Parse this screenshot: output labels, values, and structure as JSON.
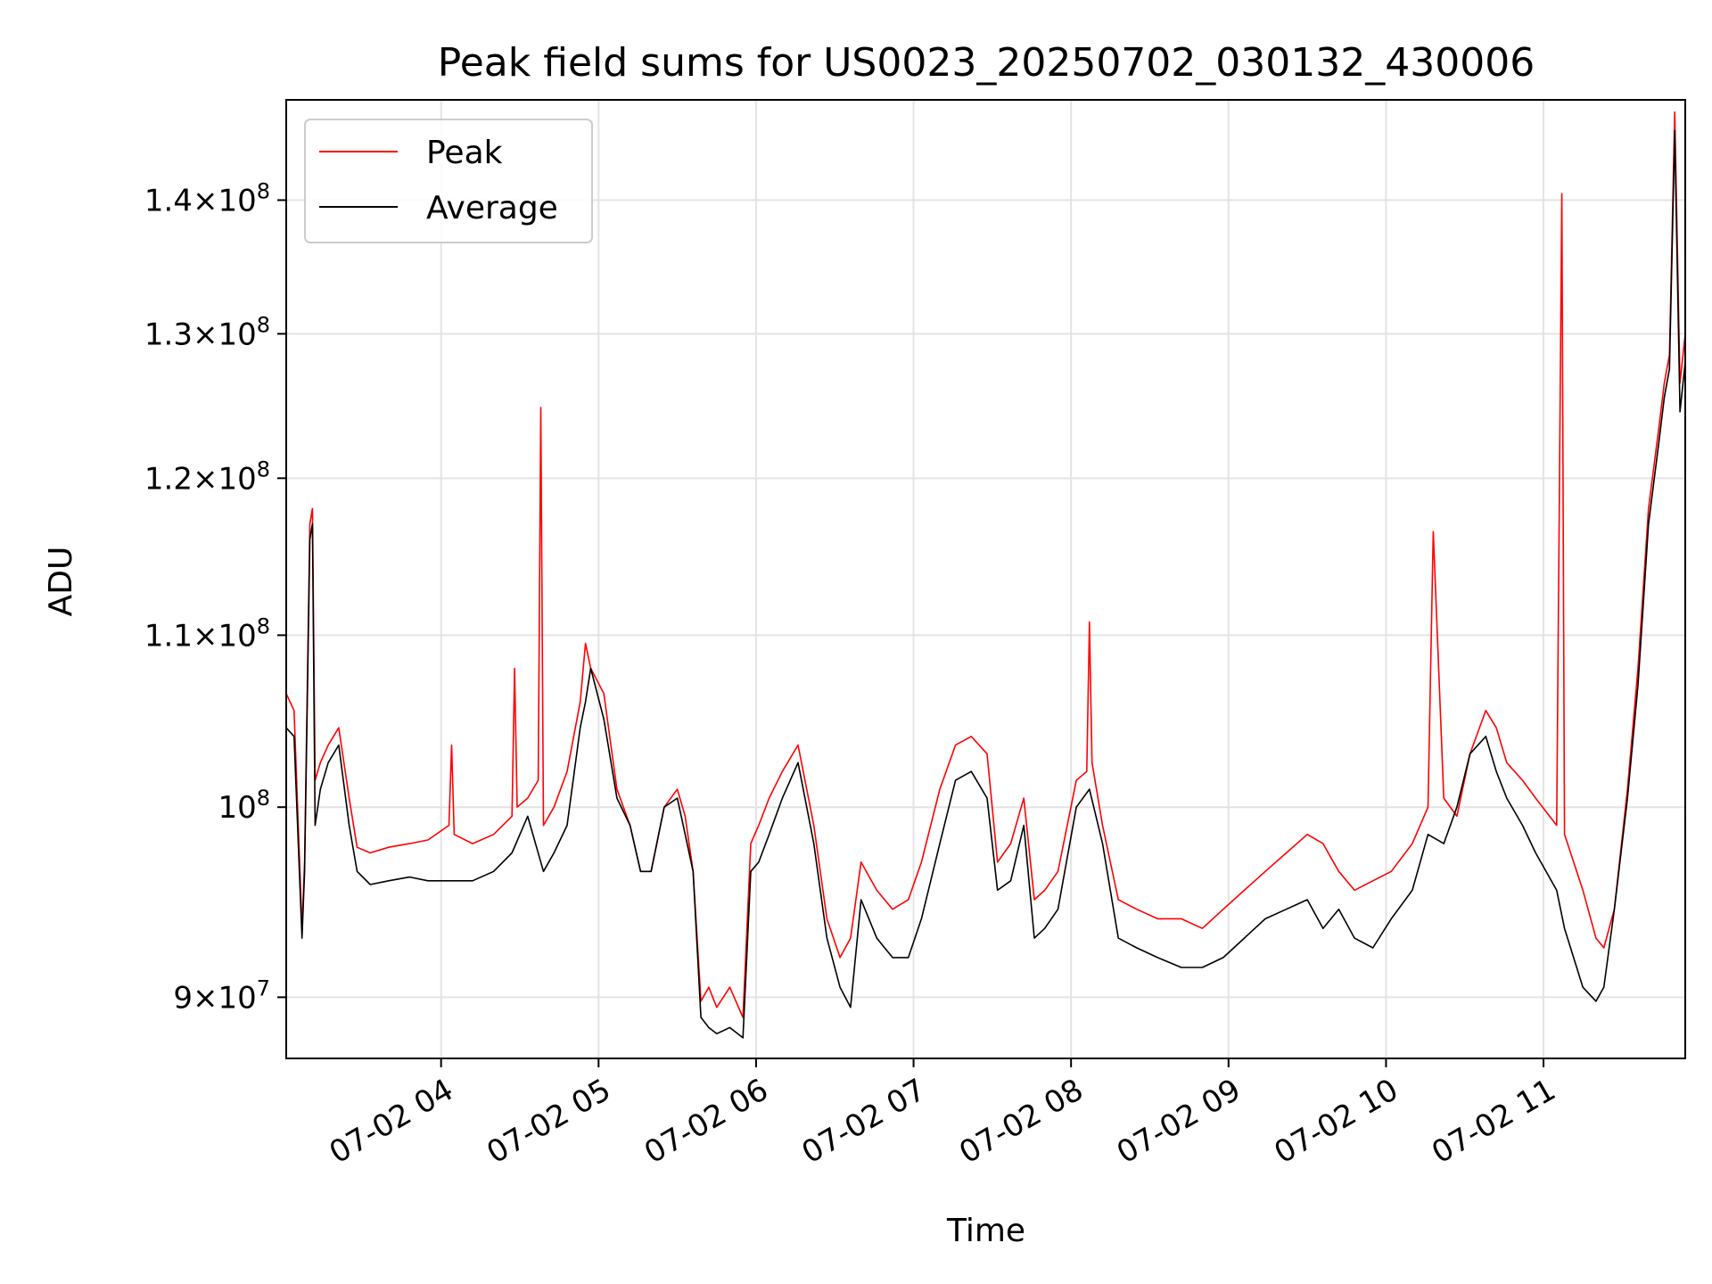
{
  "chart_data": {
    "type": "line",
    "title": "Peak field sums for US0023_20250702_030132_430006",
    "xlabel": "Time",
    "ylabel": "ADU",
    "x_scale": "time",
    "y_scale": "log",
    "xlim": [
      "2025-07-02 03:01",
      "2025-07-02 11:54"
    ],
    "ylim": [
      87000000,
      148000000
    ],
    "grid": true,
    "legend_position": "upper left",
    "x_ticks": [
      {
        "value": "2025-07-02 04:00",
        "label": "07-02 04"
      },
      {
        "value": "2025-07-02 05:00",
        "label": "07-02 05"
      },
      {
        "value": "2025-07-02 06:00",
        "label": "07-02 06"
      },
      {
        "value": "2025-07-02 07:00",
        "label": "07-02 07"
      },
      {
        "value": "2025-07-02 08:00",
        "label": "07-02 08"
      },
      {
        "value": "2025-07-02 09:00",
        "label": "07-02 09"
      },
      {
        "value": "2025-07-02 10:00",
        "label": "07-02 10"
      },
      {
        "value": "2025-07-02 11:00",
        "label": "07-02 11"
      }
    ],
    "y_ticks": [
      {
        "value": 90000000,
        "coef": "9",
        "sup": "7"
      },
      {
        "value": 100000000,
        "coef": "",
        "sup": "8"
      },
      {
        "value": 110000000,
        "coef": "1.1",
        "sup": "8"
      },
      {
        "value": 120000000,
        "coef": "1.2",
        "sup": "8"
      },
      {
        "value": 130000000,
        "coef": "1.3",
        "sup": "8"
      },
      {
        "value": 140000000,
        "coef": "1.4",
        "sup": "8"
      }
    ],
    "series": [
      {
        "name": "Peak",
        "color": "#ff0000",
        "x": [
          "2025-07-02 03:01",
          "2025-07-02 03:04",
          "2025-07-02 03:07",
          "2025-07-02 03:08",
          "2025-07-02 03:10",
          "2025-07-02 03:11",
          "2025-07-02 03:12",
          "2025-07-02 03:14",
          "2025-07-02 03:17",
          "2025-07-02 03:21",
          "2025-07-02 03:25",
          "2025-07-02 03:28",
          "2025-07-02 03:33",
          "2025-07-02 03:40",
          "2025-07-02 03:48",
          "2025-07-02 03:55",
          "2025-07-02 04:03",
          "2025-07-02 04:04",
          "2025-07-02 04:05",
          "2025-07-02 04:12",
          "2025-07-02 04:20",
          "2025-07-02 04:27",
          "2025-07-02 04:28",
          "2025-07-02 04:29",
          "2025-07-02 04:33",
          "2025-07-02 04:37",
          "2025-07-02 04:38",
          "2025-07-02 04:39",
          "2025-07-02 04:43",
          "2025-07-02 04:48",
          "2025-07-02 04:53",
          "2025-07-02 04:55",
          "2025-07-02 04:57",
          "2025-07-02 05:02",
          "2025-07-02 05:07",
          "2025-07-02 05:12",
          "2025-07-02 05:16",
          "2025-07-02 05:20",
          "2025-07-02 05:25",
          "2025-07-02 05:30",
          "2025-07-02 05:33",
          "2025-07-02 05:36",
          "2025-07-02 05:39",
          "2025-07-02 05:42",
          "2025-07-02 05:45",
          "2025-07-02 05:50",
          "2025-07-02 05:55",
          "2025-07-02 05:58",
          "2025-07-02 06:01",
          "2025-07-02 06:05",
          "2025-07-02 06:10",
          "2025-07-02 06:16",
          "2025-07-02 06:22",
          "2025-07-02 06:27",
          "2025-07-02 06:32",
          "2025-07-02 06:36",
          "2025-07-02 06:40",
          "2025-07-02 06:46",
          "2025-07-02 06:52",
          "2025-07-02 06:58",
          "2025-07-02 07:03",
          "2025-07-02 07:10",
          "2025-07-02 07:16",
          "2025-07-02 07:22",
          "2025-07-02 07:28",
          "2025-07-02 07:32",
          "2025-07-02 07:37",
          "2025-07-02 07:42",
          "2025-07-02 07:46",
          "2025-07-02 07:50",
          "2025-07-02 07:55",
          "2025-07-02 08:02",
          "2025-07-02 08:06",
          "2025-07-02 08:07",
          "2025-07-02 08:08",
          "2025-07-02 08:12",
          "2025-07-02 08:18",
          "2025-07-02 08:25",
          "2025-07-02 08:33",
          "2025-07-02 08:42",
          "2025-07-02 08:50",
          "2025-07-02 08:58",
          "2025-07-02 09:06",
          "2025-07-02 09:14",
          "2025-07-02 09:22",
          "2025-07-02 09:30",
          "2025-07-02 09:36",
          "2025-07-02 09:42",
          "2025-07-02 09:48",
          "2025-07-02 09:55",
          "2025-07-02 10:02",
          "2025-07-02 10:10",
          "2025-07-02 10:16",
          "2025-07-02 10:18",
          "2025-07-02 10:22",
          "2025-07-02 10:27",
          "2025-07-02 10:32",
          "2025-07-02 10:38",
          "2025-07-02 10:42",
          "2025-07-02 10:46",
          "2025-07-02 10:52",
          "2025-07-02 10:57",
          "2025-07-02 11:05",
          "2025-07-02 11:07",
          "2025-07-02 11:08",
          "2025-07-02 11:15",
          "2025-07-02 11:20",
          "2025-07-02 11:23",
          "2025-07-02 11:27",
          "2025-07-02 11:32",
          "2025-07-02 11:36",
          "2025-07-02 11:40",
          "2025-07-02 11:44",
          "2025-07-02 11:46",
          "2025-07-02 11:48",
          "2025-07-02 11:50",
          "2025-07-02 11:52",
          "2025-07-02 11:54"
        ],
        "y": [
          106500000,
          105500000,
          93500000,
          97000000,
          117000000,
          118000000,
          101500000,
          102500000,
          103500000,
          104500000,
          100500000,
          97800000,
          97500000,
          97800000,
          98000000,
          98200000,
          99000000,
          103500000,
          98500000,
          98000000,
          98500000,
          99500000,
          108000000,
          100000000,
          100500000,
          101500000,
          124800000,
          99000000,
          100000000,
          102000000,
          106000000,
          109500000,
          108000000,
          106500000,
          101000000,
          99000000,
          96500000,
          96500000,
          100000000,
          101000000,
          99500000,
          96500000,
          89800000,
          90500000,
          89500000,
          90500000,
          89000000,
          98000000,
          99000000,
          100500000,
          102000000,
          103500000,
          99000000,
          94000000,
          92000000,
          93000000,
          97000000,
          95500000,
          94500000,
          95000000,
          97000000,
          101000000,
          103500000,
          104000000,
          103000000,
          97000000,
          98000000,
          100500000,
          95000000,
          95500000,
          96500000,
          101500000,
          102000000,
          110800000,
          102500000,
          99000000,
          95000000,
          94500000,
          94000000,
          94000000,
          93500000,
          94500000,
          95500000,
          96500000,
          97500000,
          98500000,
          98000000,
          96500000,
          95500000,
          96000000,
          96500000,
          98000000,
          100000000,
          116500000,
          100500000,
          99500000,
          103000000,
          105500000,
          104500000,
          102500000,
          101500000,
          100500000,
          99000000,
          140500000,
          98500000,
          95500000,
          93000000,
          92500000,
          94500000,
          101000000,
          108000000,
          118000000,
          123500000,
          126500000,
          128500000,
          147000000,
          126500000,
          130000000
        ],
        "__nodup": true
      },
      {
        "name": "Average",
        "color": "#000000",
        "x": [
          "2025-07-02 03:01",
          "2025-07-02 03:04",
          "2025-07-02 03:07",
          "2025-07-02 03:08",
          "2025-07-02 03:10",
          "2025-07-02 03:11",
          "2025-07-02 03:12",
          "2025-07-02 03:14",
          "2025-07-02 03:17",
          "2025-07-02 03:21",
          "2025-07-02 03:25",
          "2025-07-02 03:28",
          "2025-07-02 03:33",
          "2025-07-02 03:40",
          "2025-07-02 03:48",
          "2025-07-02 03:55",
          "2025-07-02 04:05",
          "2025-07-02 04:12",
          "2025-07-02 04:20",
          "2025-07-02 04:27",
          "2025-07-02 04:33",
          "2025-07-02 04:39",
          "2025-07-02 04:43",
          "2025-07-02 04:48",
          "2025-07-02 04:53",
          "2025-07-02 04:55",
          "2025-07-02 04:57",
          "2025-07-02 05:02",
          "2025-07-02 05:07",
          "2025-07-02 05:12",
          "2025-07-02 05:16",
          "2025-07-02 05:20",
          "2025-07-02 05:25",
          "2025-07-02 05:30",
          "2025-07-02 05:33",
          "2025-07-02 05:36",
          "2025-07-02 05:39",
          "2025-07-02 05:42",
          "2025-07-02 05:45",
          "2025-07-02 05:50",
          "2025-07-02 05:55",
          "2025-07-02 05:58",
          "2025-07-02 06:01",
          "2025-07-02 06:05",
          "2025-07-02 06:10",
          "2025-07-02 06:16",
          "2025-07-02 06:22",
          "2025-07-02 06:27",
          "2025-07-02 06:32",
          "2025-07-02 06:36",
          "2025-07-02 06:40",
          "2025-07-02 06:46",
          "2025-07-02 06:52",
          "2025-07-02 06:58",
          "2025-07-02 07:03",
          "2025-07-02 07:10",
          "2025-07-02 07:16",
          "2025-07-02 07:22",
          "2025-07-02 07:28",
          "2025-07-02 07:32",
          "2025-07-02 07:37",
          "2025-07-02 07:42",
          "2025-07-02 07:46",
          "2025-07-02 07:50",
          "2025-07-02 07:55",
          "2025-07-02 08:02",
          "2025-07-02 08:07",
          "2025-07-02 08:12",
          "2025-07-02 08:18",
          "2025-07-02 08:25",
          "2025-07-02 08:33",
          "2025-07-02 08:42",
          "2025-07-02 08:50",
          "2025-07-02 08:58",
          "2025-07-02 09:06",
          "2025-07-02 09:14",
          "2025-07-02 09:22",
          "2025-07-02 09:30",
          "2025-07-02 09:36",
          "2025-07-02 09:42",
          "2025-07-02 09:48",
          "2025-07-02 09:55",
          "2025-07-02 10:02",
          "2025-07-02 10:10",
          "2025-07-02 10:16",
          "2025-07-02 10:22",
          "2025-07-02 10:27",
          "2025-07-02 10:32",
          "2025-07-02 10:38",
          "2025-07-02 10:42",
          "2025-07-02 10:46",
          "2025-07-02 10:52",
          "2025-07-02 10:57",
          "2025-07-02 11:05",
          "2025-07-02 11:08",
          "2025-07-02 11:15",
          "2025-07-02 11:20",
          "2025-07-02 11:23",
          "2025-07-02 11:27",
          "2025-07-02 11:32",
          "2025-07-02 11:36",
          "2025-07-02 11:40",
          "2025-07-02 11:44",
          "2025-07-02 11:46",
          "2025-07-02 11:48",
          "2025-07-02 11:50",
          "2025-07-02 11:52",
          "2025-07-02 11:54"
        ],
        "y": [
          104500000,
          104000000,
          93000000,
          96500000,
          116000000,
          117000000,
          99000000,
          101000000,
          102500000,
          103500000,
          99000000,
          96500000,
          95800000,
          96000000,
          96200000,
          96000000,
          96000000,
          96000000,
          96500000,
          97500000,
          99500000,
          96500000,
          97500000,
          99000000,
          104500000,
          106000000,
          108000000,
          105000000,
          100500000,
          99000000,
          96500000,
          96500000,
          100000000,
          100500000,
          98500000,
          96500000,
          89000000,
          88500000,
          88200000,
          88500000,
          88000000,
          96500000,
          97000000,
          98500000,
          100500000,
          102500000,
          98000000,
          93000000,
          90500000,
          89500000,
          95000000,
          93000000,
          92000000,
          92000000,
          94000000,
          98000000,
          101500000,
          102000000,
          100500000,
          95500000,
          96000000,
          99000000,
          93000000,
          93500000,
          94500000,
          100000000,
          101000000,
          98000000,
          93000000,
          92500000,
          92000000,
          91500000,
          91500000,
          92000000,
          93000000,
          94000000,
          94500000,
          95000000,
          93500000,
          94500000,
          93000000,
          92500000,
          94000000,
          95500000,
          98500000,
          98000000,
          100000000,
          103000000,
          104000000,
          102000000,
          100500000,
          99000000,
          97500000,
          95500000,
          93500000,
          90500000,
          89800000,
          90500000,
          94500000,
          100500000,
          107000000,
          117000000,
          122500000,
          125500000,
          127500000,
          145500000,
          124500000,
          128000000
        ]
      }
    ]
  }
}
